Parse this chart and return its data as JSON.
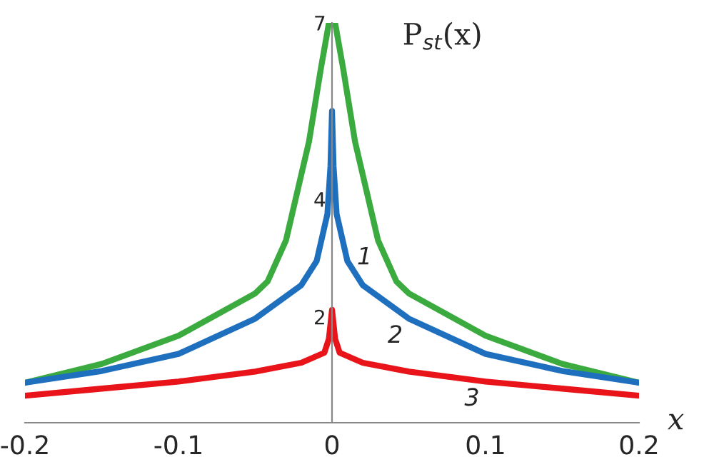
{
  "chart_data": {
    "type": "line",
    "xlabel": "x",
    "ylabel": "P$_{st}$(x)",
    "series": [
      {
        "color": "#3bab3f",
        "x": [
          -0.2,
          -0.15,
          -0.1,
          -0.05,
          -0.042,
          -0.03,
          -0.015,
          -0.0074,
          -0.002,
          0.002,
          0.0074,
          0.015,
          0.03,
          0.042,
          0.05,
          0.1,
          0.15,
          0.2
        ],
        "values": [
          0.88,
          1.2,
          1.68,
          2.4,
          2.6,
          3.3,
          4.98,
          6.2,
          7,
          7,
          6.2,
          4.98,
          3.3,
          2.6,
          2.4,
          1.68,
          1.2,
          0.88
        ]
      },
      {
        "color": "#1f6fbf",
        "x": [
          -0.2,
          -0.15,
          -0.1,
          -0.05,
          -0.02,
          -0.01,
          -0.003,
          -0.001,
          0,
          0.001,
          0.003,
          0.01,
          0.02,
          0.05,
          0.1,
          0.15,
          0.2
        ],
        "values": [
          0.88,
          1.08,
          1.37,
          1.97,
          2.54,
          2.95,
          3.75,
          4.56,
          5.5,
          4.56,
          3.75,
          2.95,
          2.54,
          1.97,
          1.37,
          1.08,
          0.88
        ]
      },
      {
        "color": "#e8141a",
        "x": [
          -0.2,
          -0.15,
          -0.1,
          -0.05,
          -0.02,
          -0.005,
          -0.002,
          0,
          0.002,
          0.005,
          0.02,
          0.05,
          0.1,
          0.15,
          0.2
        ],
        "values": [
          0.66,
          0.78,
          0.9,
          1.07,
          1.22,
          1.39,
          1.63,
          2.12,
          1.63,
          1.39,
          1.22,
          1.07,
          0.9,
          0.78,
          0.66
        ]
      }
    ],
    "xlim": [
      -0.2,
      0.2
    ],
    "ylim": [
      0.2,
      7
    ],
    "xticks": [
      -0.2,
      -0.1,
      0,
      0.1,
      0.2
    ],
    "yticks": [
      2,
      4,
      7
    ],
    "annotations": [
      {
        "text": "1",
        "x": 0.03,
        "y": 3.3
      },
      {
        "text": "2",
        "x": 0.05,
        "y": 1.97
      },
      {
        "text": "3",
        "x": 0.1,
        "y": 0.9
      }
    ],
    "grid": false,
    "legend": false
  }
}
